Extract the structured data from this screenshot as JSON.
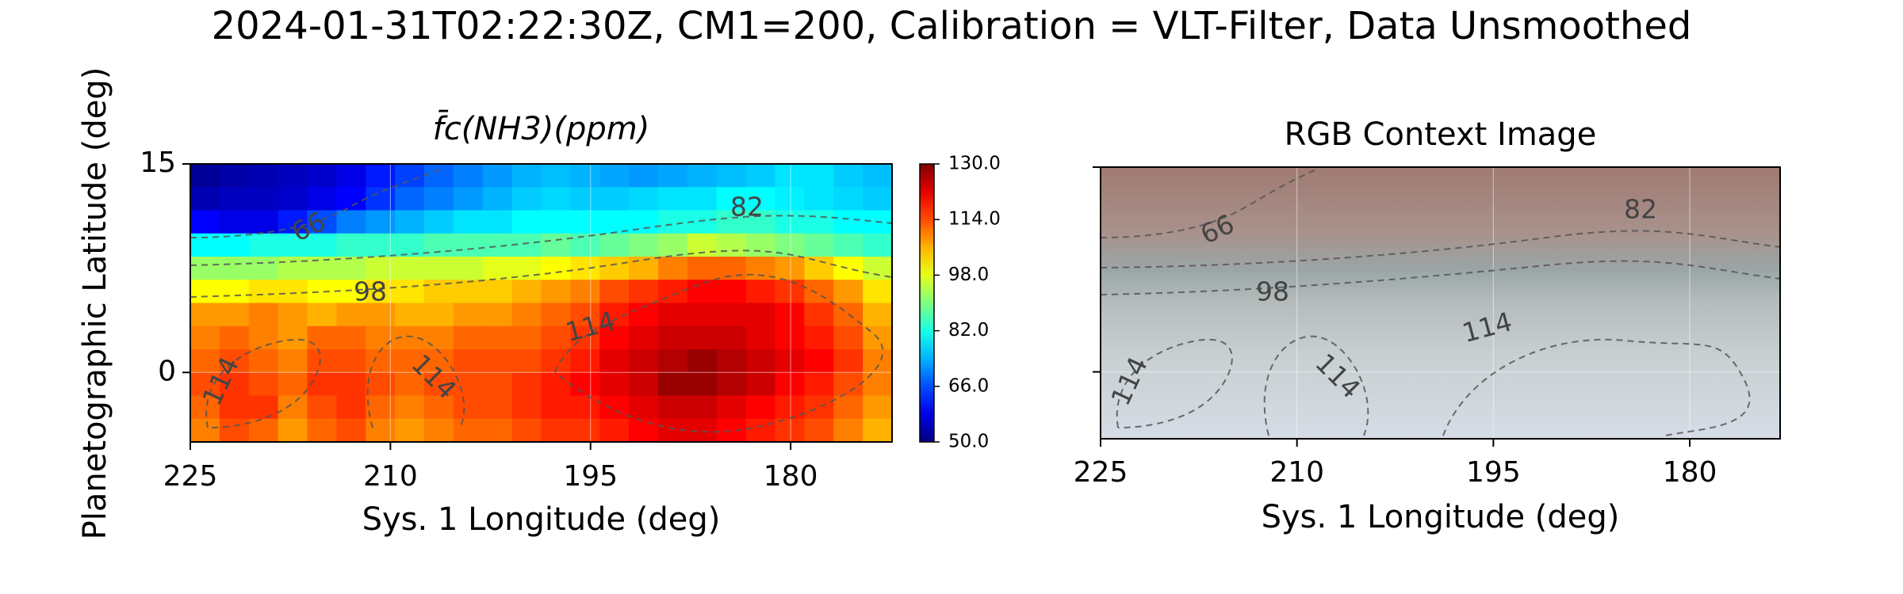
{
  "title": "2024-01-31T02:22:30Z, CM1=200, Calibration = VLT-Filter, Data Unsmoothed",
  "chart_data": [
    {
      "type": "heatmap",
      "title": "f̄c(NH3)(ppm)",
      "xlabel": "Sys. 1 Longitude (deg)",
      "ylabel": "Planetographic Latitude (deg)",
      "xlim": [
        225,
        172.4
      ],
      "xticks": [
        225,
        210,
        195,
        180
      ],
      "ylim": [
        -5,
        15
      ],
      "yticks": [
        15,
        0
      ],
      "grid": true,
      "colormap": "jet",
      "clim": [
        50,
        130
      ],
      "cticks": [
        {
          "value": 130,
          "label": "130.0"
        },
        {
          "value": 114,
          "label": "114.0"
        },
        {
          "value": 98,
          "label": "98.0"
        },
        {
          "value": 82,
          "label": "82.0"
        },
        {
          "value": 66,
          "label": "66.0"
        },
        {
          "value": 50,
          "label": "50.0"
        }
      ],
      "contour_labels": [
        66,
        98,
        114,
        114,
        114,
        82
      ],
      "z": [
        [
          52,
          53,
          54,
          55,
          56,
          58,
          62,
          65,
          68,
          70,
          72,
          74,
          75,
          74,
          73,
          72,
          73,
          74,
          75,
          76,
          78,
          78,
          76,
          75
        ],
        [
          54,
          55,
          55,
          56,
          58,
          60,
          64,
          68,
          70,
          72,
          74,
          76,
          77,
          76,
          76,
          77,
          78,
          78,
          80,
          80,
          79,
          78,
          77,
          76
        ],
        [
          60,
          58,
          58,
          62,
          66,
          70,
          72,
          74,
          76,
          78,
          78,
          80,
          80,
          80,
          80,
          80,
          82,
          82,
          84,
          84,
          82,
          82,
          80,
          80
        ],
        [
          80,
          80,
          82,
          82,
          82,
          84,
          84,
          84,
          86,
          86,
          86,
          86,
          88,
          86,
          88,
          90,
          92,
          96,
          94,
          92,
          90,
          88,
          86,
          84
        ],
        [
          92,
          92,
          92,
          94,
          94,
          94,
          96,
          96,
          96,
          96,
          98,
          98,
          100,
          102,
          104,
          106,
          110,
          112,
          112,
          110,
          108,
          104,
          100,
          96
        ],
        [
          100,
          100,
          102,
          102,
          100,
          100,
          102,
          102,
          104,
          104,
          104,
          106,
          108,
          110,
          114,
          116,
          118,
          120,
          120,
          118,
          116,
          112,
          108,
          102
        ],
        [
          108,
          108,
          110,
          108,
          106,
          108,
          108,
          106,
          106,
          108,
          108,
          110,
          112,
          114,
          118,
          120,
          122,
          122,
          122,
          122,
          120,
          116,
          112,
          106
        ],
        [
          110,
          112,
          110,
          108,
          112,
          112,
          110,
          110,
          110,
          112,
          112,
          112,
          114,
          116,
          120,
          122,
          124,
          124,
          124,
          122,
          120,
          118,
          114,
          108
        ],
        [
          112,
          114,
          112,
          110,
          114,
          114,
          112,
          112,
          112,
          114,
          114,
          114,
          116,
          118,
          122,
          124,
          126,
          128,
          126,
          124,
          122,
          120,
          116,
          110
        ],
        [
          114,
          116,
          114,
          112,
          116,
          116,
          114,
          112,
          114,
          114,
          114,
          116,
          118,
          120,
          122,
          124,
          128,
          128,
          126,
          124,
          120,
          118,
          114,
          110
        ],
        [
          112,
          116,
          116,
          110,
          114,
          116,
          112,
          110,
          112,
          114,
          114,
          116,
          118,
          118,
          120,
          122,
          124,
          124,
          122,
          120,
          118,
          116,
          112,
          108
        ],
        [
          110,
          114,
          112,
          108,
          112,
          114,
          110,
          108,
          110,
          112,
          112,
          114,
          116,
          116,
          118,
          120,
          122,
          122,
          120,
          118,
          116,
          114,
          110,
          106
        ]
      ]
    },
    {
      "type": "image",
      "title": "RGB Context Image",
      "xlabel": "Sys. 1 Longitude (deg)",
      "xlim": [
        225,
        173.1
      ],
      "xticks": [
        225,
        210,
        195,
        180
      ],
      "ylim": [
        -4.9,
        15
      ],
      "yticks": [
        15,
        0
      ],
      "grid": true,
      "contour_labels": [
        66,
        98,
        114,
        114,
        114,
        82
      ]
    }
  ]
}
